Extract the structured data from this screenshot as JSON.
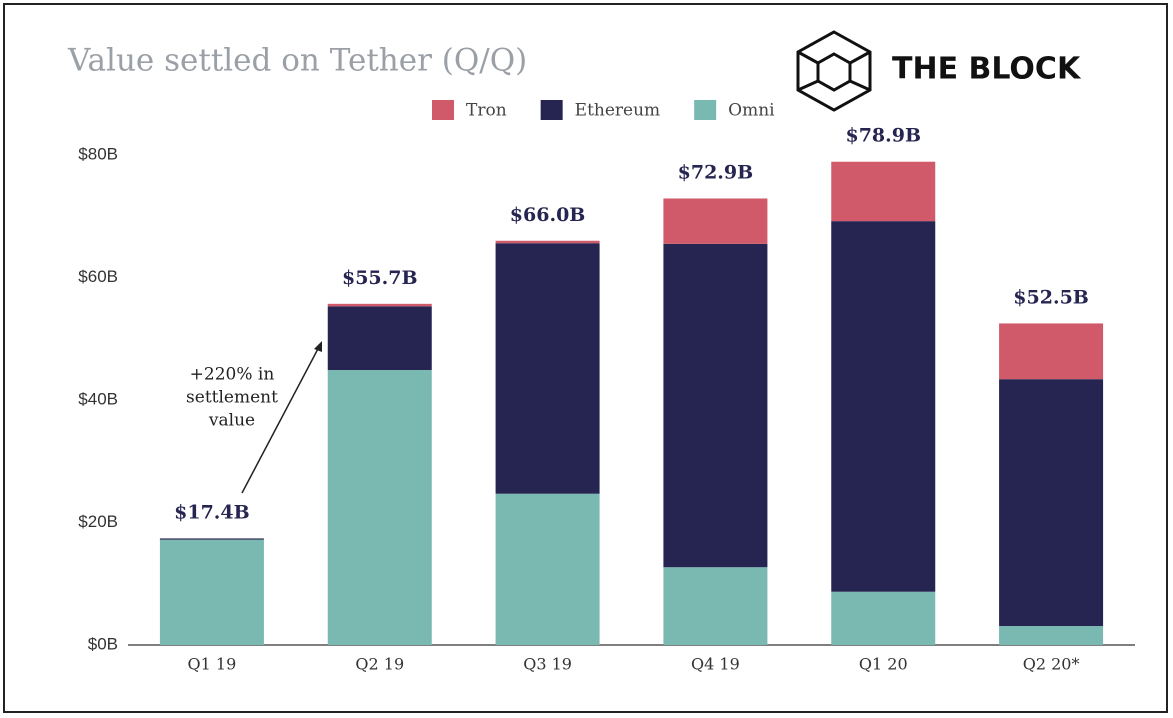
{
  "chart_data": {
    "type": "stacked_bar",
    "title": "Value settled on Tether (Q/Q)",
    "brand": "THE BLOCK",
    "categories": [
      "Q1 19",
      "Q2 19",
      "Q3 19",
      "Q4 19",
      "Q1 20",
      "Q2 20*"
    ],
    "series": [
      {
        "name": "Omni",
        "color": "#7ab8b2",
        "values": [
          17.2,
          44.9,
          24.7,
          12.7,
          8.7,
          3.1
        ]
      },
      {
        "name": "Ethereum",
        "color": "#262450",
        "values": [
          0.2,
          10.4,
          40.9,
          52.8,
          60.5,
          40.3
        ]
      },
      {
        "name": "Tron",
        "color": "#d05a6a",
        "values": [
          0,
          0.4,
          0.4,
          7.4,
          9.7,
          9.1
        ]
      }
    ],
    "totals": {
      "values": [
        17.4,
        55.7,
        66.0,
        72.9,
        78.9,
        52.5
      ],
      "value_labels": [
        "$17.4B",
        "$55.7B",
        "$66.0B",
        "$72.9B",
        "$78.9B",
        "$52.5B"
      ]
    },
    "annotation": [
      "+220% in",
      "settlement",
      "value"
    ],
    "ylim": [
      0,
      80
    ],
    "yticks": [
      {
        "value": 0,
        "label": "$0B"
      },
      {
        "value": 20,
        "label": "$20B"
      },
      {
        "value": 40,
        "label": "$40B"
      },
      {
        "value": 60,
        "label": "$60B"
      },
      {
        "value": 80,
        "label": "$80B"
      }
    ],
    "legend": "top"
  }
}
